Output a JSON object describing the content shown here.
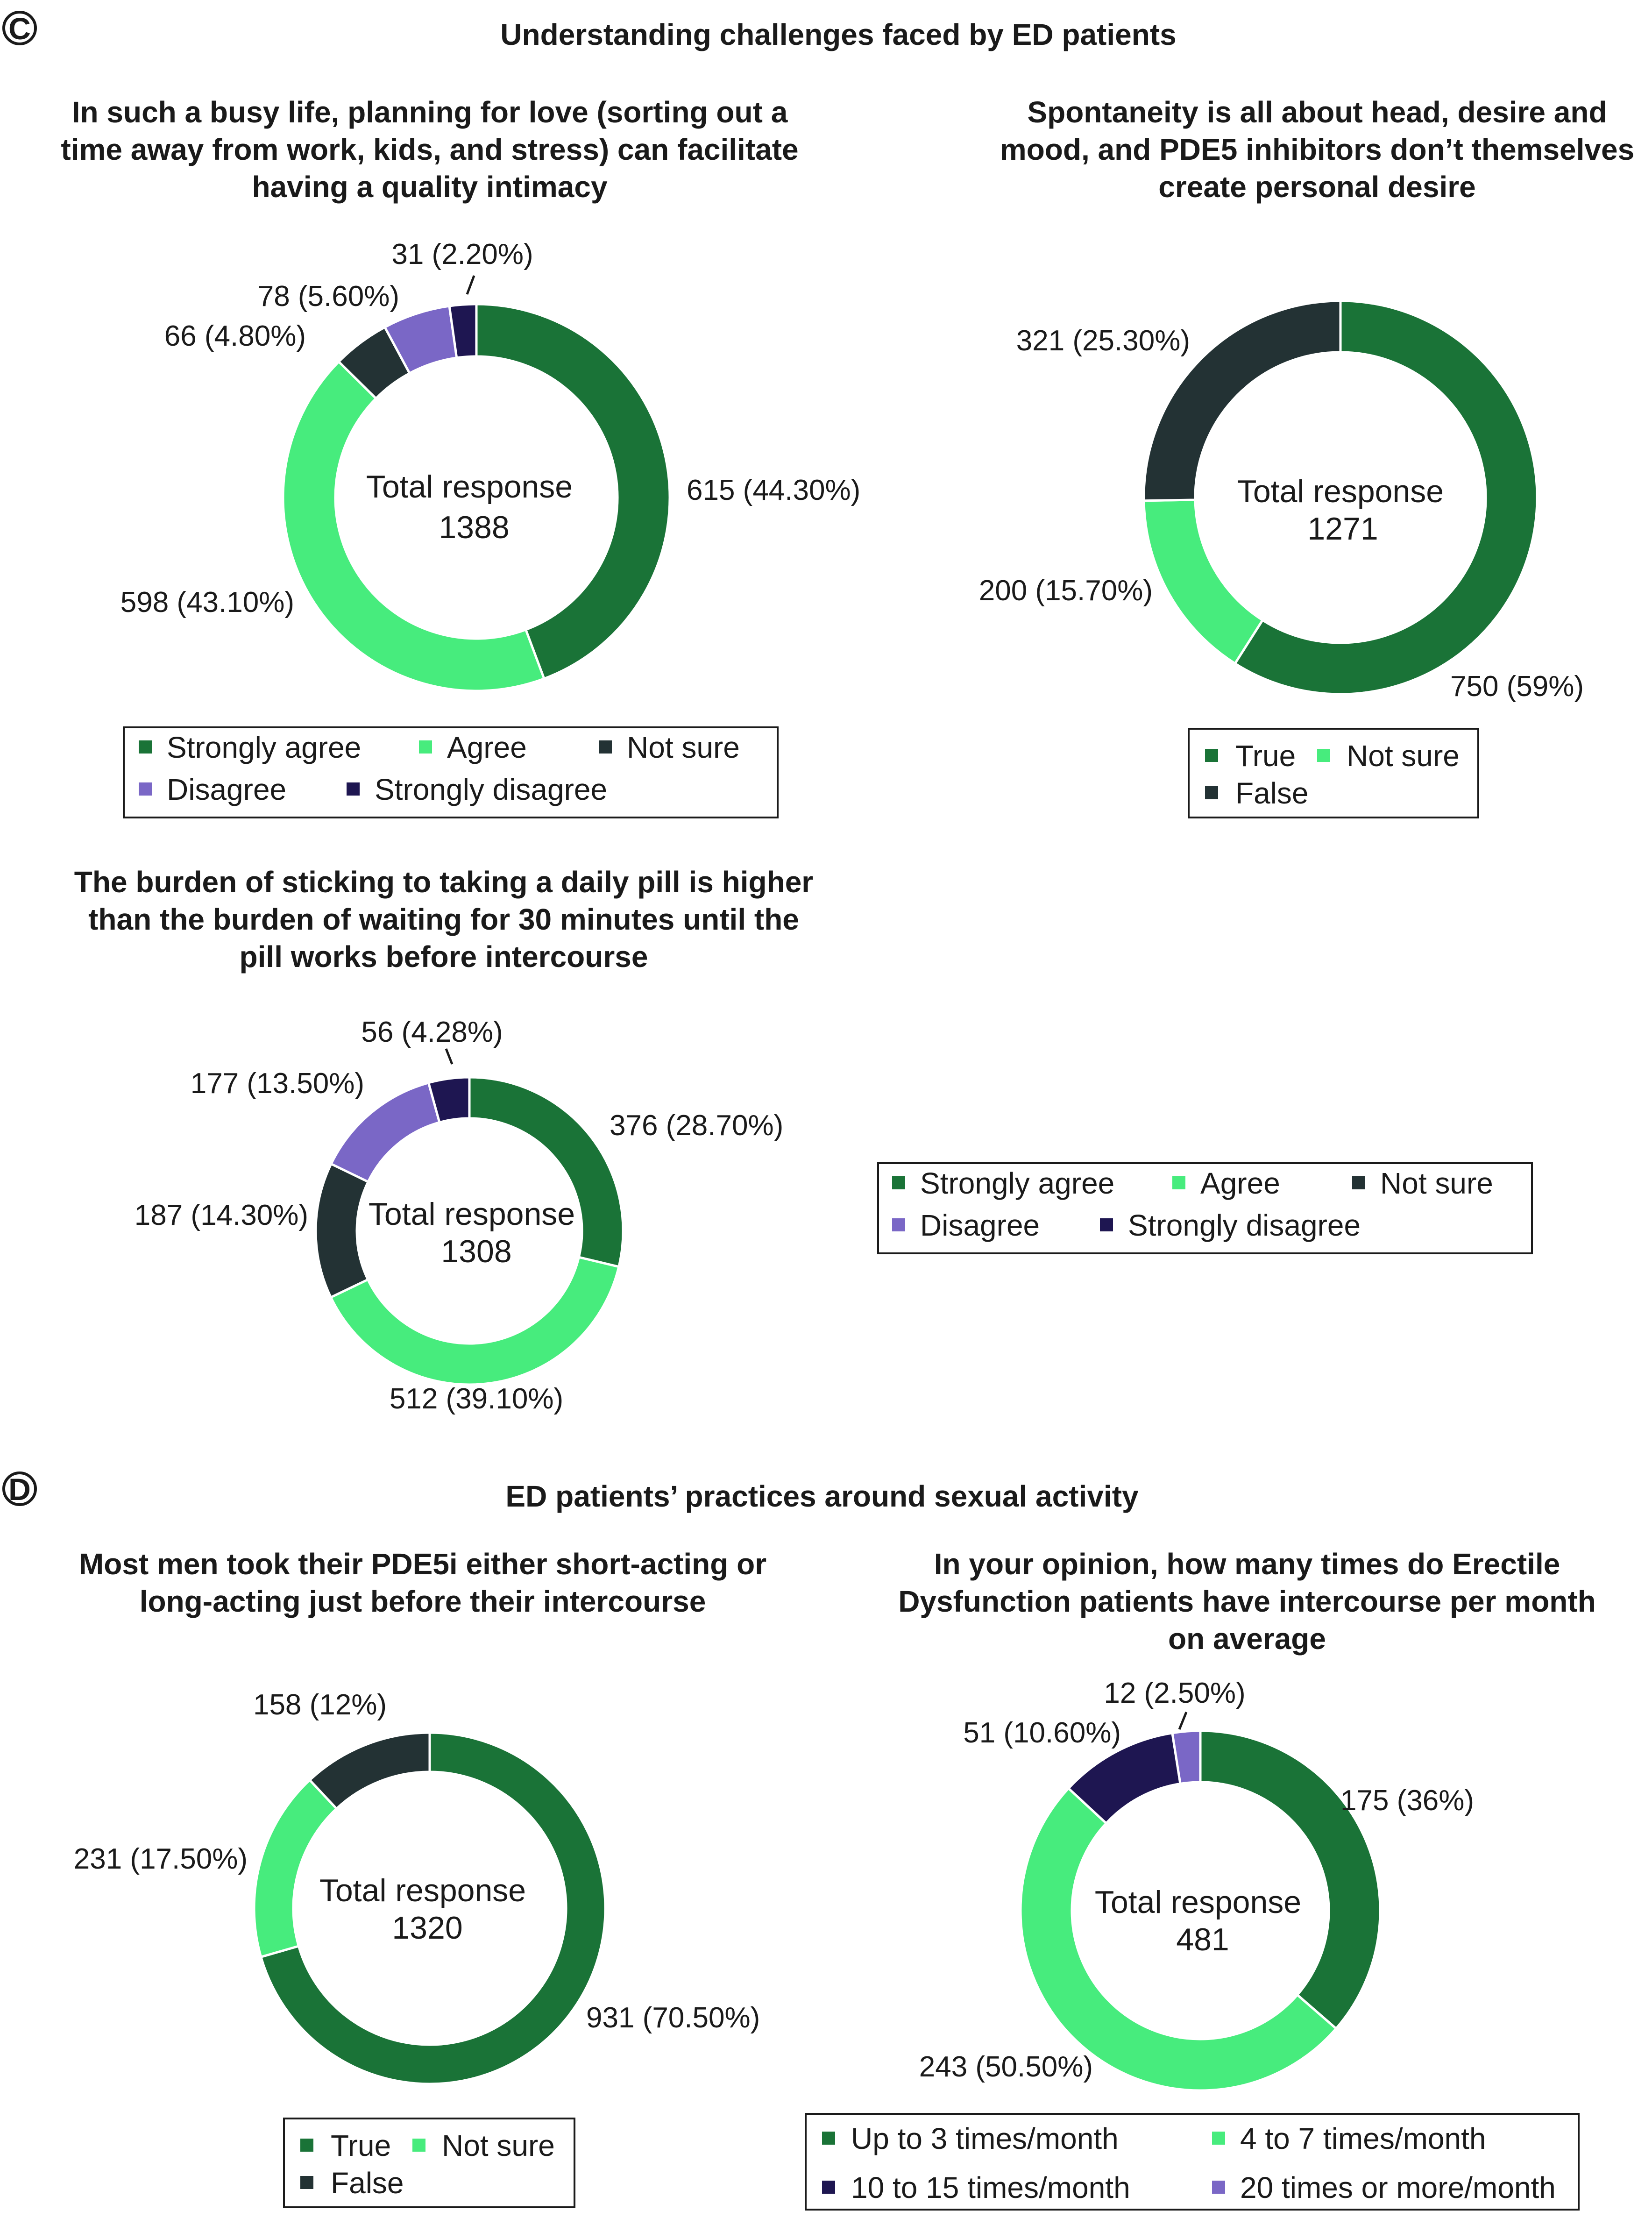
{
  "panels": [
    {
      "letter": "C",
      "title": "Understanding challenges faced by ED patients"
    },
    {
      "letter": "D",
      "title": "ED patients’ practices around sexual activity"
    }
  ],
  "colors": {
    "strongly_agree": "#1a7337",
    "agree": "#47ec7d",
    "not_sure": "#233234",
    "disagree": "#7a67c6",
    "strongly_disagree": "#1e1651"
  },
  "chart_data": [
    {
      "type": "pie",
      "title_lines": [
        "In such a busy life, planning for love (sorting out a",
        "time away from work, kids, and stress) can facilitate",
        "having a quality intimacy"
      ],
      "center_lines": [
        "Total response",
        "1388"
      ],
      "slices": [
        {
          "label": "Strongly agree",
          "value": 615,
          "percent": 44.3,
          "text": "615 (44.30%)",
          "color": "#1a7337"
        },
        {
          "label": "Agree",
          "value": 598,
          "percent": 43.1,
          "text": "598 (43.10%)",
          "color": "#47ec7d"
        },
        {
          "label": "Not sure",
          "value": 66,
          "percent": 4.8,
          "text": "66 (4.80%)",
          "color": "#233234"
        },
        {
          "label": "Disagree",
          "value": 78,
          "percent": 5.6,
          "text": "78 (5.60%)",
          "color": "#7a67c6"
        },
        {
          "label": "Strongly disagree",
          "value": 31,
          "percent": 2.2,
          "text": "31 (2.20%)",
          "color": "#1e1651"
        }
      ],
      "legend": [
        "Strongly agree",
        "Agree",
        "Not sure",
        "Disagree",
        "Strongly disagree"
      ]
    },
    {
      "type": "pie",
      "title_lines": [
        "Spontaneity is all about head, desire and",
        "mood, and PDE5 inhibitors don’t themselves",
        "create personal desire"
      ],
      "center_lines": [
        "Total response",
        "1271"
      ],
      "slices": [
        {
          "label": "True",
          "value": 750,
          "percent": 59,
          "text": "750 (59%)",
          "color": "#1a7337"
        },
        {
          "label": "Not sure",
          "value": 200,
          "percent": 15.7,
          "text": "200 (15.70%)",
          "color": "#47ec7d"
        },
        {
          "label": "False",
          "value": 321,
          "percent": 25.3,
          "text": "321 (25.30%)",
          "color": "#233234"
        }
      ],
      "legend": [
        "True",
        "Not sure",
        "False"
      ]
    },
    {
      "type": "pie",
      "title_lines": [
        "The burden of sticking to taking a daily pill is higher",
        "than the burden of waiting for 30 minutes until the",
        "pill works before intercourse"
      ],
      "center_lines": [
        "Total response",
        "1308"
      ],
      "slices": [
        {
          "label": "Strongly agree",
          "value": 376,
          "percent": 28.7,
          "text": "376 (28.70%)",
          "color": "#1a7337"
        },
        {
          "label": "Agree",
          "value": 512,
          "percent": 39.1,
          "text": "512 (39.10%)",
          "color": "#47ec7d"
        },
        {
          "label": "Not sure",
          "value": 187,
          "percent": 14.3,
          "text": "187 (14.30%)",
          "color": "#233234"
        },
        {
          "label": "Disagree",
          "value": 177,
          "percent": 13.5,
          "text": "177 (13.50%)",
          "color": "#7a67c6"
        },
        {
          "label": "Strongly disagree",
          "value": 56,
          "percent": 4.28,
          "text": "56 (4.28%)",
          "color": "#1e1651"
        }
      ],
      "legend": [
        "Strongly agree",
        "Agree",
        "Not sure",
        "Disagree",
        "Strongly disagree"
      ]
    },
    {
      "type": "pie",
      "title_lines": [
        "Most men took their PDE5i either short-acting or",
        "long-acting just before their intercourse"
      ],
      "center_lines": [
        "Total response",
        "1320"
      ],
      "slices": [
        {
          "label": "True",
          "value": 931,
          "percent": 70.5,
          "text": "931 (70.50%)",
          "color": "#1a7337"
        },
        {
          "label": "Not sure",
          "value": 231,
          "percent": 17.5,
          "text": "231 (17.50%)",
          "color": "#47ec7d"
        },
        {
          "label": "False",
          "value": 158,
          "percent": 12,
          "text": "158 (12%)",
          "color": "#233234"
        }
      ],
      "legend": [
        "True",
        "Not sure",
        "False"
      ]
    },
    {
      "type": "pie",
      "title_lines": [
        "In your opinion, how many times do Erectile",
        "Dysfunction patients have intercourse per month",
        "on average"
      ],
      "center_lines": [
        "Total response",
        "481"
      ],
      "slices": [
        {
          "label": "Up to 3 times/month",
          "value": 175,
          "percent": 36,
          "text": "175 (36%)",
          "color": "#1a7337"
        },
        {
          "label": "4 to 7 times/month",
          "value": 243,
          "percent": 50.5,
          "text": "243 (50.50%)",
          "color": "#47ec7d"
        },
        {
          "label": "10 to 15 times/month",
          "value": 51,
          "percent": 10.6,
          "text": "51 (10.60%)",
          "color": "#1e1651"
        },
        {
          "label": "20 times or more/month",
          "value": 12,
          "percent": 2.5,
          "text": "12 (2.50%)",
          "color": "#7a67c6"
        }
      ],
      "legend": [
        "Up to 3 times/month",
        "4 to 7 times/month",
        "10 to 15 times/month",
        "20 times or more/month"
      ]
    }
  ]
}
